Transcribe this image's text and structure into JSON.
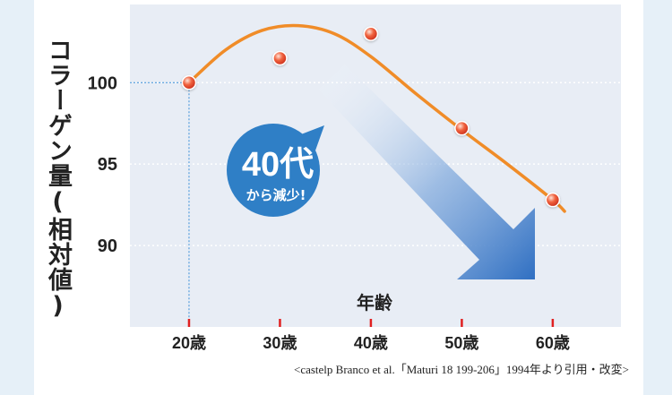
{
  "chart_data": {
    "type": "line",
    "ylabel": "コラーゲン量(相対値)",
    "xlabel": "年齢",
    "categories": [
      "20歳",
      "30歳",
      "40歳",
      "50歳",
      "60歳"
    ],
    "x": [
      20,
      30,
      40,
      50,
      60
    ],
    "y_ticks": [
      100,
      95,
      90
    ],
    "ylim": [
      85,
      104.8
    ],
    "xlim": [
      13.5,
      67.5
    ],
    "grid": "horizontal-dotted",
    "points": [
      {
        "x": 20,
        "y": 100
      },
      {
        "x": 30,
        "y": 101.5
      },
      {
        "x": 40,
        "y": 103
      },
      {
        "x": 50,
        "y": 97.2
      },
      {
        "x": 60,
        "y": 92.8
      }
    ],
    "trend_curve": [
      {
        "x": 20,
        "y": 100
      },
      {
        "x": 24,
        "y": 102
      },
      {
        "x": 28,
        "y": 103.2
      },
      {
        "x": 32,
        "y": 103.5
      },
      {
        "x": 36,
        "y": 103
      },
      {
        "x": 40,
        "y": 101.6
      },
      {
        "x": 45,
        "y": 99.3
      },
      {
        "x": 50,
        "y": 97.1
      },
      {
        "x": 55,
        "y": 95
      },
      {
        "x": 60,
        "y": 92.8
      },
      {
        "x": 61.3,
        "y": 92.1
      }
    ],
    "annotation": {
      "big": "40代",
      "small": "から減少!"
    },
    "source": "<castelp Branco et al.「Maturi 18 199-206」1994年より引用・改変>",
    "colors": {
      "line": "#f08c28",
      "marker": "#e8402a",
      "plot_bg": "#e8edf5",
      "badge": "#2f7fc6",
      "arrow": "#3b7dc8",
      "guide": "#3a8fd8",
      "tick_mark": "#e02020"
    }
  }
}
